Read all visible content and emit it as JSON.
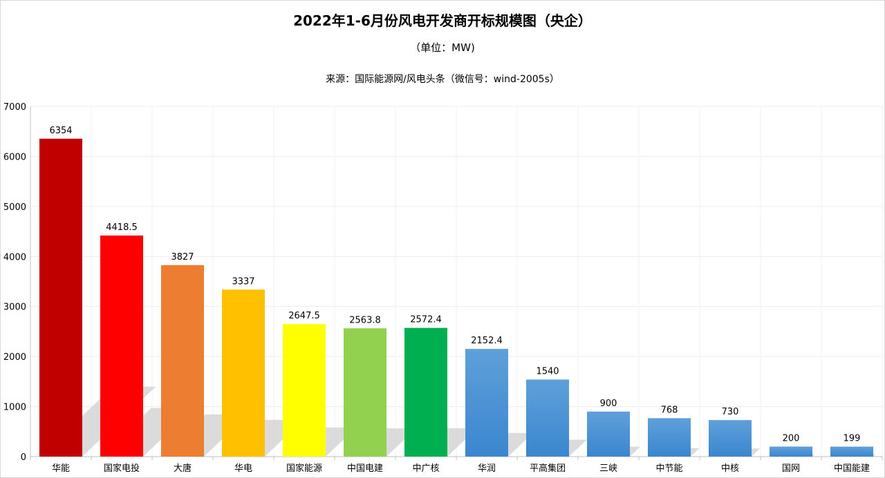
{
  "title": "2022年1-6月份风电开发商开标规模图（央企）",
  "subtitle": "（单位：MW)",
  "source": "来源：国际能源网/风电头条（微信号：wind-2005s）",
  "chart_data": {
    "type": "bar",
    "categories": [
      "华能",
      "国家电投",
      "大唐",
      "华电",
      "国家能源",
      "中国电建",
      "中广核",
      "华润",
      "平高集团",
      "三峡",
      "中节能",
      "中核",
      "国网",
      "中国能建"
    ],
    "values": [
      6354,
      4418.5,
      3827,
      3337,
      2647.5,
      2563.8,
      2572.4,
      2152.4,
      1540,
      900,
      768,
      730,
      200,
      199
    ],
    "value_labels": [
      "6354",
      "4418.5",
      "3827",
      "3337",
      "2647.5",
      "2563.8",
      "2572.4",
      "2152.4",
      "1540",
      "900",
      "768",
      "730",
      "200",
      "199"
    ],
    "colors": [
      "#c00000",
      "#ff0000",
      "#ed7d31",
      "#ffc000",
      "#ffff00",
      "#92d050",
      "#00b050",
      "#5b9bd5",
      "#5b9bd5",
      "#5b9bd5",
      "#5b9bd5",
      "#5b9bd5",
      "#5b9bd5",
      "#5b9bd5"
    ],
    "ylim": [
      0,
      7000
    ],
    "yticks": [
      0,
      1000,
      2000,
      3000,
      4000,
      5000,
      6000,
      7000
    ],
    "grid": true,
    "legend": "none"
  }
}
